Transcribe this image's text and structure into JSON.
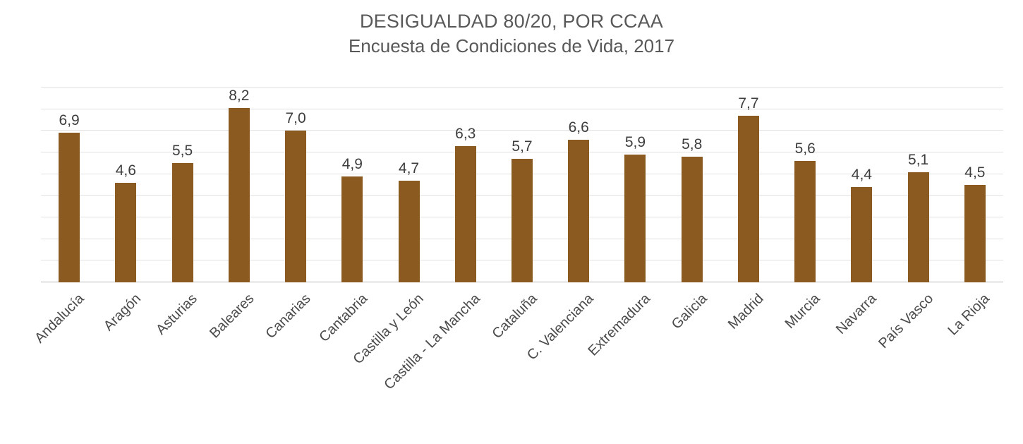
{
  "chart_data": {
    "type": "bar",
    "title": "DESIGUALDAD 80/20, POR CCAA",
    "subtitle": "Encuesta de Condiciones de Vida, 2017",
    "categories": [
      "Andalucía",
      "Aragón",
      "Asturias",
      "Baleares",
      "Canarias",
      "Cantabria",
      "Castilla y León",
      "Castilla - La Mancha",
      "Cataluña",
      "C. Valenciana",
      "Extremadura",
      "Galicia",
      "Madrid",
      "Murcia",
      "Navarra",
      "País Vasco",
      "La Rioja"
    ],
    "values": [
      6.9,
      4.6,
      5.5,
      8.2,
      7.0,
      4.9,
      4.7,
      6.3,
      5.7,
      6.6,
      5.9,
      5.8,
      7.7,
      5.6,
      4.4,
      5.1,
      4.5
    ],
    "value_labels": [
      "6,9",
      "4,6",
      "5,5",
      "8,2",
      "7,0",
      "4,9",
      "4,7",
      "6,3",
      "5,7",
      "6,6",
      "5,9",
      "5,8",
      "7,7",
      "5,6",
      "4,4",
      "5,1",
      "4,5"
    ],
    "xlabel": "",
    "ylabel": "",
    "ylim": [
      0,
      9
    ],
    "gridline_step": 1,
    "grid": true,
    "legend": "none",
    "bar_color": "#8A5A20",
    "title_color": "#595959",
    "value_label_color": "#3D3D3D",
    "axis_label_color": "#4A4A4A",
    "gridline_color": "#E2E2E2",
    "axis_line_color": "#B7B7B7"
  }
}
